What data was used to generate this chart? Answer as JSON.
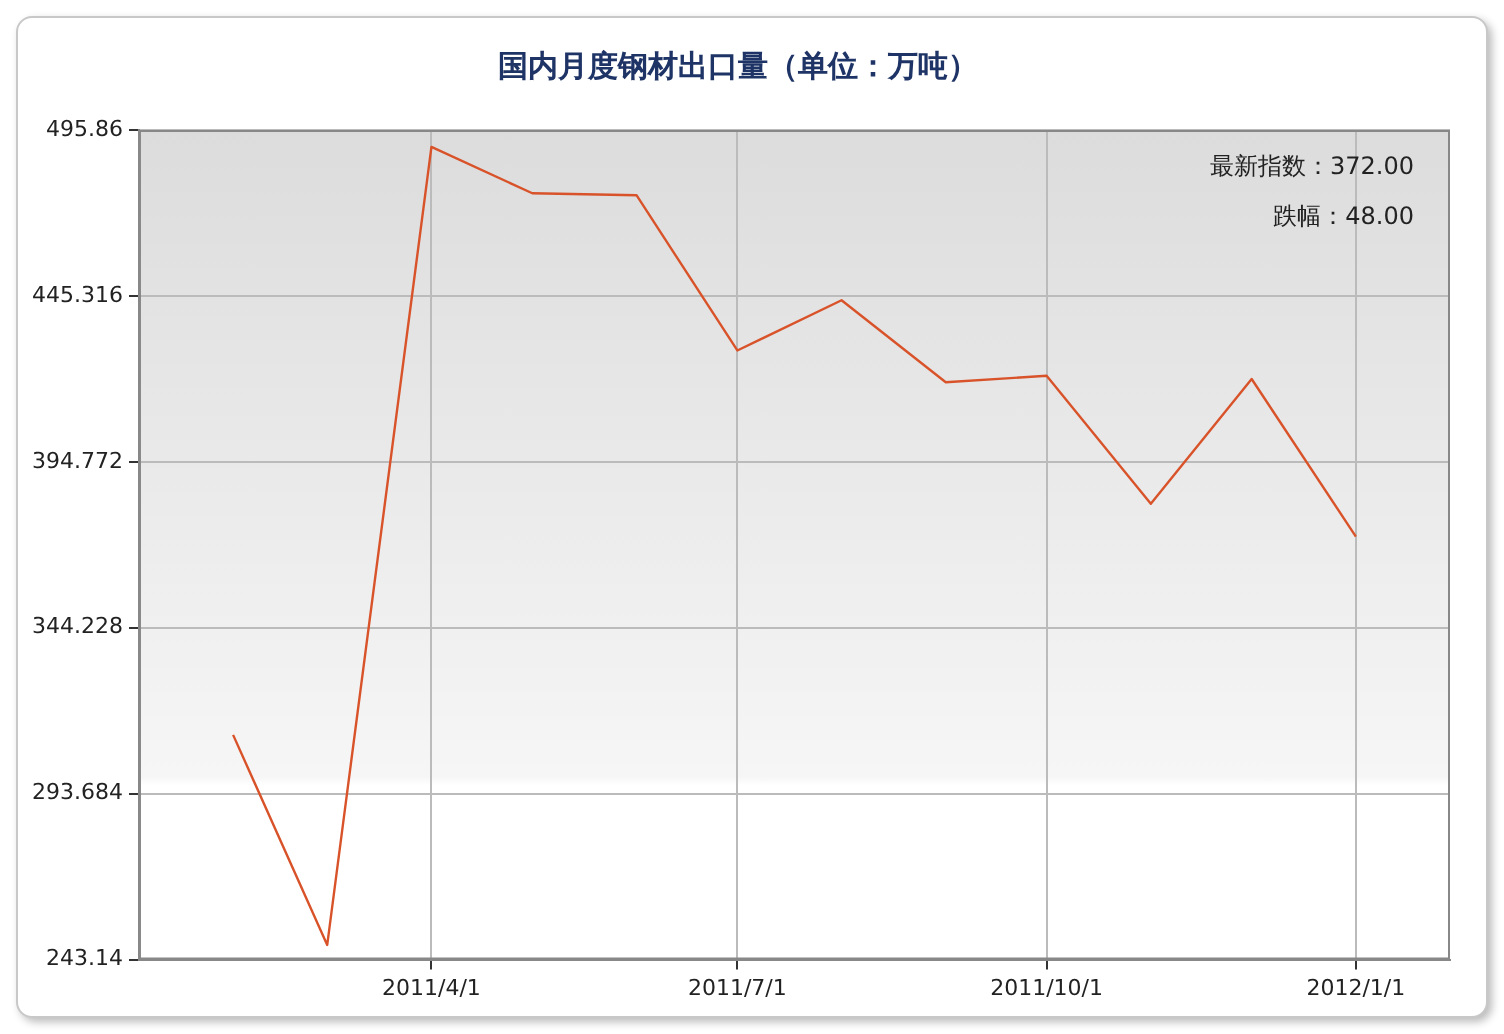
{
  "chart_data": {
    "type": "line",
    "title": "国内月度钢材出口量（单位：万吨）",
    "x": [
      "2011-02-01",
      "2011-03-01",
      "2011-04-01",
      "2011-05-01",
      "2011-06-01",
      "2011-07-01",
      "2011-08-01",
      "2011-09-01",
      "2011-10-01",
      "2011-11-01",
      "2011-12-01",
      "2012-01-01"
    ],
    "series": [
      {
        "color": "#d9532a",
        "values": [
          311.6,
          247.6,
          490.7,
          476.6,
          476,
          428.7,
          444,
          419,
          421,
          382,
          420,
          372
        ]
      }
    ],
    "xlim": [
      "2011-01-04",
      "2012-01-29"
    ],
    "xticks": [
      {
        "value": "2011-04-01",
        "label": "2011/4/1"
      },
      {
        "value": "2011-07-01",
        "label": "2011/7/1"
      },
      {
        "value": "2011-10-01",
        "label": "2011/10/1"
      },
      {
        "value": "2012-01-01",
        "label": "2012/1/1"
      }
    ],
    "ylim": [
      243.14,
      495.86
    ],
    "yticks": [
      243.14,
      293.684,
      344.228,
      394.772,
      445.316,
      495.86
    ],
    "annotations": [
      "最新指数：372.00",
      "跌幅：48.00"
    ],
    "grid": true,
    "legend": false,
    "marker": "none",
    "line_style": "solid"
  }
}
